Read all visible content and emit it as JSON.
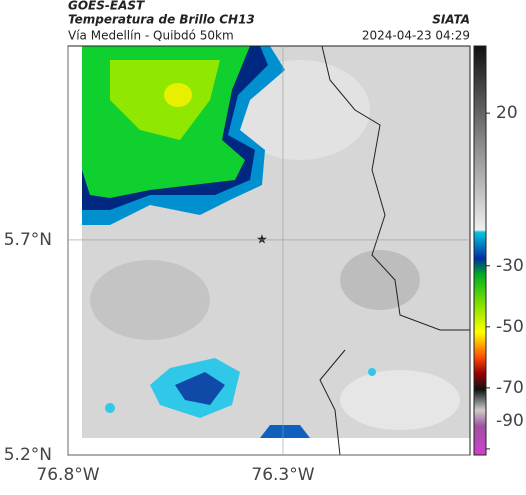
{
  "header": {
    "source": "GOES-EAST",
    "product": "Temperatura de Brillo CH13",
    "region": "Vía Medellín - Quibdó 50km",
    "agency": "SIATA",
    "datetime": "2024-04-23 04:29"
  },
  "map": {
    "xlim": [
      -76.8,
      -75.865
    ],
    "ylim": [
      5.2,
      6.151
    ],
    "xticks": [
      {
        "value": -76.8,
        "label": "76.8°W"
      },
      {
        "value": -76.3,
        "label": "76.3°W"
      }
    ],
    "yticks": [
      {
        "value": 5.2,
        "label": "5.2°N"
      },
      {
        "value": 5.7,
        "label": "5.7°N"
      }
    ],
    "grid": true
  },
  "colorbar": {
    "lim": [
      42,
      -92
    ],
    "ticks": [
      20,
      -30,
      -50,
      -70,
      -90
    ]
  }
}
